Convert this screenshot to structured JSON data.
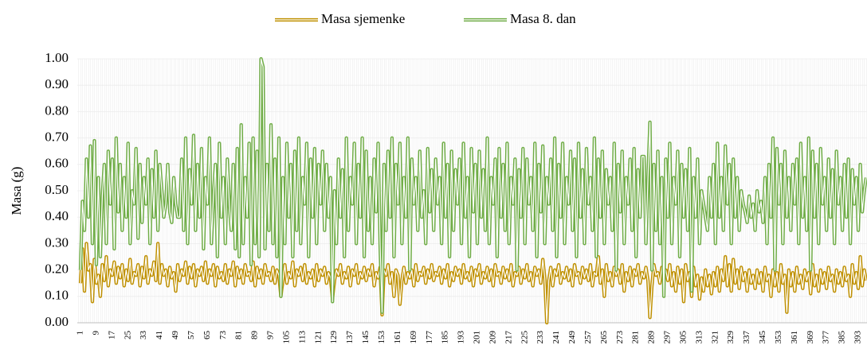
{
  "chart_data": {
    "type": "line",
    "y_label": "Masa (g)",
    "ylim": [
      0,
      1
    ],
    "yticks": [
      {
        "value": 0,
        "label": "0.00"
      },
      {
        "value": 0.1,
        "label": "0.10"
      },
      {
        "value": 0.2,
        "label": "0.20"
      },
      {
        "value": 0.3,
        "label": "0.30"
      },
      {
        "value": 0.4,
        "label": "0.40"
      },
      {
        "value": 0.5,
        "label": "0.50"
      },
      {
        "value": 0.6,
        "label": "0.60"
      },
      {
        "value": 0.7,
        "label": "0.70"
      },
      {
        "value": 0.8,
        "label": "0.80"
      },
      {
        "value": 0.9,
        "label": "0.90"
      },
      {
        "value": 1,
        "label": "1.00"
      }
    ],
    "legend": "top",
    "categories": [
      "1",
      null,
      null,
      null,
      null,
      null,
      null,
      null,
      "9",
      null,
      null,
      null,
      null,
      null,
      null,
      null,
      "17",
      null,
      null,
      null,
      null,
      null,
      null,
      null,
      "25",
      null,
      null,
      null,
      null,
      null,
      null,
      null,
      "33",
      null,
      null,
      null,
      null,
      null,
      null,
      null,
      "41",
      null,
      null,
      null,
      null,
      null,
      null,
      null,
      "49",
      null,
      null,
      null,
      null,
      null,
      null,
      null,
      "57",
      null,
      null,
      null,
      null,
      null,
      null,
      null,
      "65",
      null,
      null,
      null,
      null,
      null,
      null,
      null,
      "73",
      null,
      null,
      null,
      null,
      null,
      null,
      null,
      "81",
      null,
      null,
      null,
      null,
      null,
      null,
      null,
      "89",
      null,
      null,
      null,
      null,
      null,
      null,
      null,
      "97",
      null,
      null,
      null,
      null,
      null,
      null,
      null,
      "105",
      null,
      null,
      null,
      null,
      null,
      null,
      null,
      "113",
      null,
      null,
      null,
      null,
      null,
      null,
      null,
      "121",
      null,
      null,
      null,
      null,
      null,
      null,
      null,
      "129",
      null,
      null,
      null,
      null,
      null,
      null,
      null,
      "137",
      null,
      null,
      null,
      null,
      null,
      null,
      null,
      "145",
      null,
      null,
      null,
      null,
      null,
      null,
      null,
      "153",
      null,
      null,
      null,
      null,
      null,
      null,
      null,
      "161",
      null,
      null,
      null,
      null,
      null,
      null,
      null,
      "169",
      null,
      null,
      null,
      null,
      null,
      null,
      null,
      "177",
      null,
      null,
      null,
      null,
      null,
      null,
      null,
      "185",
      null,
      null,
      null,
      null,
      null,
      null,
      null,
      "193",
      null,
      null,
      null,
      null,
      null,
      null,
      null,
      "201",
      null,
      null,
      null,
      null,
      null,
      null,
      null,
      "209",
      null,
      null,
      null,
      null,
      null,
      null,
      null,
      "217",
      null,
      null,
      null,
      null,
      null,
      null,
      null,
      "225",
      null,
      null,
      null,
      null,
      null,
      null,
      null,
      "233",
      null,
      null,
      null,
      null,
      null,
      null,
      null,
      "241",
      null,
      null,
      null,
      null,
      null,
      null,
      null,
      "249",
      null,
      null,
      null,
      null,
      null,
      null,
      null,
      "257",
      null,
      null,
      null,
      null,
      null,
      null,
      null,
      "265",
      null,
      null,
      null,
      null,
      null,
      null,
      null,
      "273",
      null,
      null,
      null,
      null,
      null,
      null,
      null,
      "281",
      null,
      null,
      null,
      null,
      null,
      null,
      null,
      "289",
      null,
      null,
      null,
      null,
      null,
      null,
      null,
      "297",
      null,
      null,
      null,
      null,
      null,
      null,
      null,
      "305",
      null,
      null,
      null,
      null,
      null,
      null,
      null,
      "313",
      null,
      null,
      null,
      null,
      null,
      null,
      null,
      "321",
      null,
      null,
      null,
      null,
      null,
      null,
      null,
      "329",
      null,
      null,
      null,
      null,
      null,
      null,
      null,
      "337",
      null,
      null,
      null,
      null,
      null,
      null,
      null,
      "345",
      null,
      null,
      null,
      null,
      null,
      null,
      null,
      "353",
      null,
      null,
      null,
      null,
      null,
      null,
      null,
      "361",
      null,
      null,
      null,
      null,
      null,
      null,
      null,
      "369",
      null,
      null,
      null,
      null,
      null,
      null,
      null,
      "377",
      null,
      null,
      null,
      null,
      null,
      null,
      null,
      "385",
      null,
      null,
      null,
      null,
      null,
      null,
      null,
      "393",
      null,
      null,
      null,
      null
    ],
    "series": [
      {
        "name": "Masa sjemenke",
        "color": "#bf9000",
        "values": [
          0.15,
          0.28,
          0.12,
          0.3,
          0.2,
          0.22,
          0.08,
          0.24,
          0.15,
          0.18,
          0.1,
          0.22,
          0.16,
          0.25,
          0.14,
          0.2,
          0.18,
          0.23,
          0.15,
          0.21,
          0.17,
          0.22,
          0.14,
          0.2,
          0.16,
          0.24,
          0.15,
          0.19,
          0.18,
          0.22,
          0.14,
          0.21,
          0.17,
          0.25,
          0.15,
          0.2,
          0.18,
          0.23,
          0.16,
          0.3,
          0.15,
          0.22,
          0.18,
          0.2,
          0.14,
          0.21,
          0.17,
          0.19,
          0.12,
          0.22,
          0.16,
          0.2,
          0.18,
          0.23,
          0.15,
          0.21,
          0.17,
          0.22,
          0.14,
          0.2,
          0.18,
          0.21,
          0.16,
          0.23,
          0.15,
          0.2,
          0.18,
          0.22,
          0.14,
          0.21,
          0.17,
          0.19,
          0.16,
          0.22,
          0.15,
          0.2,
          0.18,
          0.23,
          0.14,
          0.21,
          0.17,
          0.2,
          0.15,
          0.22,
          0.18,
          0.19,
          0.16,
          0.23,
          0.14,
          0.21,
          0.17,
          0.2,
          0.15,
          0.22,
          0.18,
          0.19,
          0.16,
          0.21,
          0.15,
          0.2,
          0.18,
          0.1,
          0.16,
          0.22,
          0.15,
          0.19,
          0.17,
          0.23,
          0.14,
          0.2,
          0.18,
          0.21,
          0.16,
          0.22,
          0.15,
          0.19,
          0.17,
          0.2,
          0.14,
          0.22,
          0.16,
          0.2,
          0.18,
          0.21,
          0.15,
          0.19,
          0.17,
          0.09,
          0.16,
          0.2,
          0.18,
          0.22,
          0.15,
          0.19,
          0.17,
          0.21,
          0.14,
          0.2,
          0.18,
          0.22,
          0.15,
          0.19,
          0.17,
          0.21,
          0.16,
          0.2,
          0.18,
          0.22,
          0.14,
          0.19,
          0.17,
          0.21,
          0.03,
          0.2,
          0.18,
          0.22,
          0.15,
          0.19,
          0.1,
          0.2,
          0.18,
          0.07,
          0.16,
          0.21,
          0.15,
          0.19,
          0.17,
          0.2,
          0.14,
          0.22,
          0.16,
          0.19,
          0.18,
          0.21,
          0.15,
          0.2,
          0.17,
          0.22,
          0.16,
          0.19,
          0.18,
          0.21,
          0.15,
          0.2,
          0.17,
          0.22,
          0.14,
          0.19,
          0.16,
          0.21,
          0.18,
          0.2,
          0.15,
          0.22,
          0.17,
          0.19,
          0.16,
          0.21,
          0.14,
          0.2,
          0.18,
          0.22,
          0.15,
          0.19,
          0.17,
          0.21,
          0.16,
          0.2,
          0.14,
          0.22,
          0.18,
          0.19,
          0.15,
          0.21,
          0.17,
          0.2,
          0.16,
          0.22,
          0.14,
          0.19,
          0.18,
          0.21,
          0.15,
          0.2,
          0.17,
          0.22,
          0.16,
          0.19,
          0.14,
          0.21,
          0.18,
          0.2,
          0.15,
          0.24,
          0.17,
          0.0,
          0.16,
          0.21,
          0.14,
          0.2,
          0.18,
          0.22,
          0.15,
          0.19,
          0.17,
          0.21,
          0.16,
          0.2,
          0.14,
          0.22,
          0.18,
          0.19,
          0.15,
          0.21,
          0.17,
          0.2,
          0.16,
          0.22,
          0.14,
          0.19,
          0.18,
          0.25,
          0.15,
          0.2,
          0.1,
          0.22,
          0.16,
          0.19,
          0.14,
          0.21,
          0.18,
          0.2,
          0.15,
          0.22,
          0.12,
          0.19,
          0.16,
          0.21,
          0.14,
          0.2,
          0.18,
          0.22,
          0.15,
          0.19,
          0.17,
          0.21,
          0.16,
          0.02,
          0.14,
          0.22,
          0.18,
          0.19,
          0.15,
          0.21,
          0.17,
          0.2,
          0.16,
          0.22,
          0.14,
          0.19,
          0.12,
          0.21,
          0.15,
          0.2,
          0.08,
          0.22,
          0.16,
          0.19,
          0.1,
          0.21,
          0.14,
          0.18,
          0.09,
          0.17,
          0.12,
          0.2,
          0.14,
          0.18,
          0.11,
          0.19,
          0.14,
          0.21,
          0.12,
          0.2,
          0.16,
          0.25,
          0.14,
          0.22,
          0.12,
          0.24,
          0.15,
          0.2,
          0.13,
          0.21,
          0.16,
          0.19,
          0.12,
          0.2,
          0.15,
          0.18,
          0.13,
          0.2,
          0.15,
          0.19,
          0.12,
          0.21,
          0.16,
          0.18,
          0.1,
          0.2,
          0.14,
          0.19,
          0.12,
          0.22,
          0.15,
          0.18,
          0.04,
          0.2,
          0.14,
          0.19,
          0.12,
          0.21,
          0.15,
          0.18,
          0.13,
          0.2,
          0.16,
          0.19,
          0.11,
          0.22,
          0.14,
          0.18,
          0.12,
          0.2,
          0.15,
          0.19,
          0.13,
          0.21,
          0.16,
          0.18,
          0.12,
          0.2,
          0.15,
          0.19,
          0.14,
          0.21,
          0.16,
          0.18,
          0.1,
          0.22,
          0.15,
          0.19,
          0.13,
          0.25,
          0.14,
          0.2,
          0.16
        ]
      },
      {
        "name": "Masa 8. dan",
        "color": "#70ad47",
        "values": [
          0.2,
          0.46,
          0.35,
          0.62,
          0.4,
          0.67,
          0.3,
          0.69,
          0.22,
          0.55,
          0.25,
          0.48,
          0.6,
          0.3,
          0.65,
          0.45,
          0.62,
          0.28,
          0.7,
          0.42,
          0.6,
          0.35,
          0.55,
          0.4,
          0.68,
          0.3,
          0.5,
          0.45,
          0.66,
          0.32,
          0.6,
          0.38,
          0.55,
          0.45,
          0.62,
          0.3,
          0.58,
          0.4,
          0.65,
          0.35,
          0.6,
          0.5,
          0.4,
          0.45,
          0.6,
          0.42,
          0.38,
          0.55,
          0.45,
          0.4,
          0.4,
          0.62,
          0.35,
          0.7,
          0.3,
          0.58,
          0.45,
          0.71,
          0.35,
          0.6,
          0.4,
          0.66,
          0.28,
          0.55,
          0.45,
          0.7,
          0.3,
          0.48,
          0.6,
          0.25,
          0.68,
          0.4,
          0.55,
          0.3,
          0.62,
          0.45,
          0.35,
          0.6,
          0.28,
          0.66,
          0.25,
          0.75,
          0.3,
          0.55,
          0.4,
          0.68,
          0.22,
          0.7,
          0.3,
          0.65,
          0.25,
          1.0,
          0.97,
          0.28,
          0.6,
          0.35,
          0.75,
          0.3,
          0.62,
          0.25,
          0.7,
          0.1,
          0.55,
          0.3,
          0.68,
          0.4,
          0.6,
          0.25,
          0.65,
          0.35,
          0.7,
          0.3,
          0.55,
          0.45,
          0.68,
          0.25,
          0.62,
          0.4,
          0.66,
          0.3,
          0.6,
          0.45,
          0.65,
          0.35,
          0.6,
          0.4,
          0.55,
          0.08,
          0.5,
          0.3,
          0.62,
          0.4,
          0.58,
          0.25,
          0.7,
          0.35,
          0.55,
          0.45,
          0.68,
          0.3,
          0.6,
          0.4,
          0.7,
          0.25,
          0.65,
          0.35,
          0.55,
          0.3,
          0.62,
          0.42,
          0.68,
          0.3,
          0.04,
          0.6,
          0.35,
          0.65,
          0.4,
          0.7,
          0.25,
          0.6,
          0.45,
          0.68,
          0.3,
          0.55,
          0.4,
          0.7,
          0.2,
          0.62,
          0.45,
          0.55,
          0.35,
          0.65,
          0.4,
          0.5,
          0.3,
          0.66,
          0.42,
          0.58,
          0.35,
          0.62,
          0.45,
          0.55,
          0.3,
          0.68,
          0.4,
          0.6,
          0.25,
          0.65,
          0.35,
          0.58,
          0.45,
          0.62,
          0.3,
          0.68,
          0.4,
          0.55,
          0.25,
          0.66,
          0.42,
          0.6,
          0.3,
          0.65,
          0.4,
          0.58,
          0.35,
          0.7,
          0.3,
          0.55,
          0.45,
          0.62,
          0.25,
          0.66,
          0.4,
          0.6,
          0.35,
          0.68,
          0.3,
          0.55,
          0.45,
          0.62,
          0.2,
          0.58,
          0.4,
          0.66,
          0.3,
          0.62,
          0.45,
          0.55,
          0.35,
          0.68,
          0.25,
          0.6,
          0.42,
          0.67,
          0.3,
          0.55,
          0.45,
          0.62,
          0.35,
          0.7,
          0.25,
          0.6,
          0.4,
          0.68,
          0.3,
          0.55,
          0.45,
          0.65,
          0.35,
          0.62,
          0.25,
          0.68,
          0.4,
          0.58,
          0.3,
          0.66,
          0.45,
          0.55,
          0.35,
          0.7,
          0.25,
          0.62,
          0.4,
          0.65,
          0.3,
          0.58,
          0.45,
          0.55,
          0.35,
          0.68,
          0.2,
          0.6,
          0.42,
          0.65,
          0.3,
          0.55,
          0.45,
          0.62,
          0.35,
          0.66,
          0.25,
          0.58,
          0.4,
          0.63,
          0.63,
          0.3,
          0.55,
          0.76,
          0.2,
          0.6,
          0.35,
          0.65,
          0.3,
          0.55,
          0.1,
          0.62,
          0.4,
          0.68,
          0.3,
          0.55,
          0.45,
          0.65,
          0.25,
          0.6,
          0.4,
          0.58,
          0.35,
          0.66,
          0.12,
          0.55,
          0.4,
          0.62,
          0.3,
          0.5,
          0.45,
          0.4,
          0.35,
          0.55,
          0.4,
          0.6,
          0.3,
          0.68,
          0.4,
          0.55,
          0.35,
          0.67,
          0.45,
          0.6,
          0.3,
          0.62,
          0.4,
          0.55,
          0.35,
          0.5,
          0.45,
          0.42,
          0.38,
          0.48,
          0.4,
          0.45,
          0.35,
          0.5,
          0.42,
          0.46,
          0.38,
          0.55,
          0.3,
          0.6,
          0.4,
          0.7,
          0.2,
          0.66,
          0.45,
          0.6,
          0.3,
          0.65,
          0.4,
          0.55,
          0.35,
          0.6,
          0.45,
          0.62,
          0.3,
          0.68,
          0.4,
          0.55,
          0.35,
          0.7,
          0.2,
          0.65,
          0.4,
          0.6,
          0.3,
          0.66,
          0.45,
          0.55,
          0.35,
          0.62,
          0.4,
          0.58,
          0.3,
          0.65,
          0.45,
          0.55,
          0.35,
          0.6,
          0.4,
          0.62,
          0.3,
          0.58,
          0.45,
          0.55,
          0.35,
          0.6,
          0.42,
          0.5,
          0.55
        ]
      }
    ]
  }
}
